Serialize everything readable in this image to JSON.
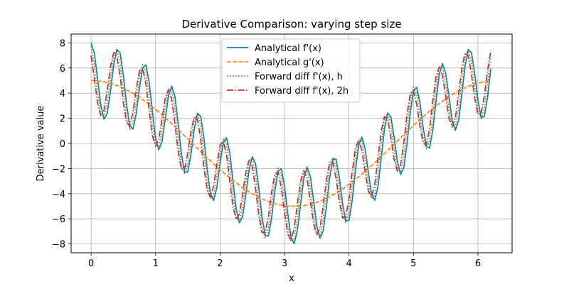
{
  "chart_data": {
    "type": "line",
    "title": "Derivative Comparison: varying step size",
    "xlabel": "x",
    "ylabel": "Derivative value",
    "xlim": [
      -0.31,
      6.53
    ],
    "ylim": [
      -8.7,
      8.7
    ],
    "xticks": [
      0,
      1,
      2,
      3,
      4,
      5,
      6
    ],
    "yticks": [
      -8,
      -6,
      -4,
      -2,
      0,
      2,
      4,
      6,
      8
    ],
    "xtick_labels": [
      "0",
      "1",
      "2",
      "3",
      "4",
      "5",
      "6"
    ],
    "ytick_labels": [
      "−8",
      "−6",
      "−4",
      "−2",
      "0",
      "2",
      "4",
      "6",
      "8"
    ],
    "grid": true,
    "legend_position": "upper-center",
    "x_range": [
      0,
      6.2
    ],
    "n_points": 125,
    "series": [
      {
        "name": "Analytical f'(x)",
        "expression": "5cos(x) + 3cos(15x)",
        "style": "solid",
        "color": "#1f77b4"
      },
      {
        "name": "Analytical g'(x)",
        "expression": "5cos(x)",
        "style": "dashed",
        "color": "#ff7f0e"
      },
      {
        "name": "Forward diff f'(x), h",
        "expression": "forward difference of 5sin(x) + 0.2sin(15x), step h = 0.05",
        "style": "dotted",
        "color": "#2ca02c"
      },
      {
        "name": "Forward diff f'(x), 2h",
        "expression": "forward difference of 5sin(x) + 0.2sin(15x), step 2h = 0.1",
        "style": "dashdot",
        "color": "#d62728"
      }
    ]
  }
}
